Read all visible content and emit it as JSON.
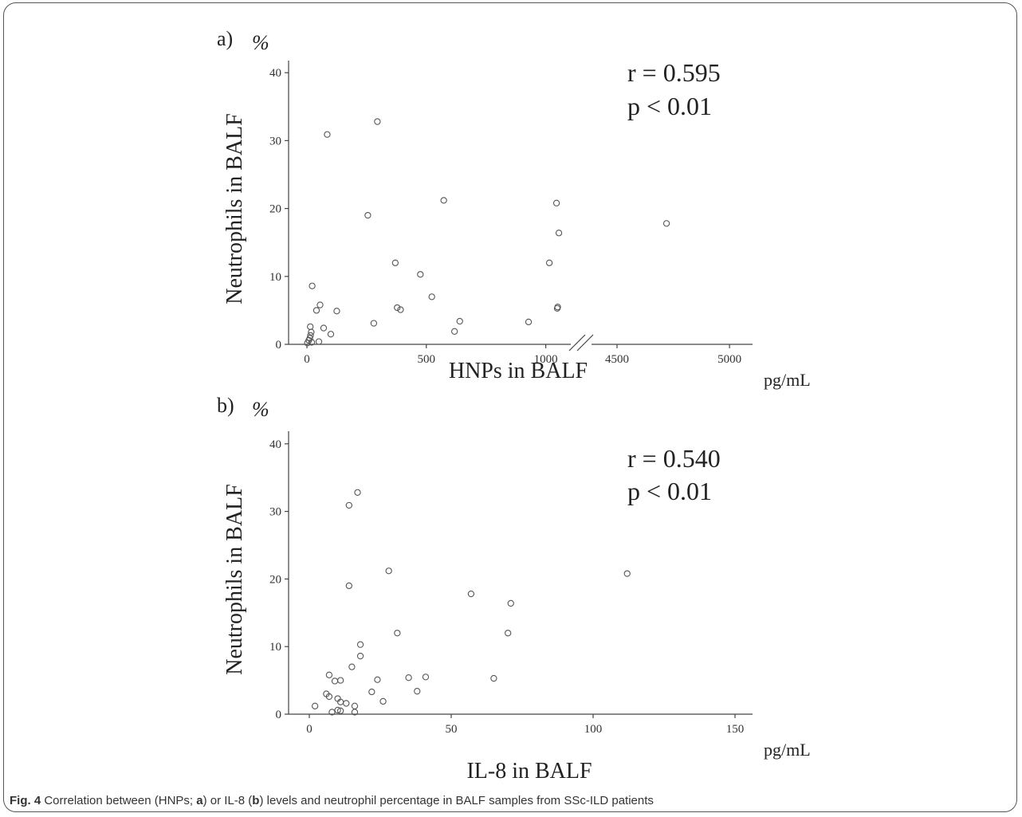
{
  "caption": {
    "fig_label": "Fig. 4",
    "text_1": " Correlation between (HNPs; ",
    "bold_a": "a",
    "text_2": ") or IL-8 (",
    "bold_b": "b",
    "text_3": ") levels and neutrophil percentage in BALF samples from SSc-ILD patients"
  },
  "chart_data": [
    {
      "type": "scatter",
      "panel_label": "a)",
      "y_unit_label": "%",
      "ylabel": "Neutrophils in BALF",
      "xlabel": "HNPs in BALF",
      "x_unit": "pg/mL",
      "stat_r": "r = 0.595",
      "stat_p": "p < 0.01",
      "ylim": [
        0,
        42
      ],
      "yticks": [
        0,
        10,
        20,
        30,
        40
      ],
      "x_axis_break": true,
      "xlim_left": [
        0,
        1100
      ],
      "xlim_right": [
        4350,
        5100
      ],
      "xticks_left": [
        0,
        500,
        1000
      ],
      "xticks_right": [
        4500,
        5000
      ],
      "points": [
        [
          2,
          0.2
        ],
        [
          8,
          0.6
        ],
        [
          12,
          0.9
        ],
        [
          15,
          1.3
        ],
        [
          18,
          1.8
        ],
        [
          14,
          2.6
        ],
        [
          20,
          0.3
        ],
        [
          22,
          8.6
        ],
        [
          40,
          5.0
        ],
        [
          50,
          0.4
        ],
        [
          55,
          5.8
        ],
        [
          70,
          2.4
        ],
        [
          85,
          30.9
        ],
        [
          100,
          1.5
        ],
        [
          125,
          4.9
        ],
        [
          255,
          19.0
        ],
        [
          280,
          3.1
        ],
        [
          295,
          32.8
        ],
        [
          370,
          12.0
        ],
        [
          378,
          5.4
        ],
        [
          392,
          5.1
        ],
        [
          475,
          10.3
        ],
        [
          523,
          7.0
        ],
        [
          573,
          21.2
        ],
        [
          618,
          1.9
        ],
        [
          640,
          3.4
        ],
        [
          928,
          3.3
        ],
        [
          1015,
          12.0
        ],
        [
          1045,
          20.8
        ],
        [
          1048,
          5.3
        ],
        [
          1050,
          5.5
        ],
        [
          1055,
          16.4
        ],
        [
          4720,
          17.8
        ]
      ]
    },
    {
      "type": "scatter",
      "panel_label": "b)",
      "y_unit_label": "%",
      "ylabel": "Neutrophils in BALF",
      "xlabel": "IL-8 in BALF",
      "x_unit": "pg/mL",
      "stat_r": "r = 0.540",
      "stat_p": "p < 0.01",
      "xlim": [
        -8,
        158
      ],
      "ylim": [
        0,
        42
      ],
      "xticks": [
        0,
        50,
        100,
        150
      ],
      "yticks": [
        0,
        10,
        20,
        30,
        40
      ],
      "points": [
        [
          2,
          1.2
        ],
        [
          6,
          3.0
        ],
        [
          7,
          5.8
        ],
        [
          7,
          2.6
        ],
        [
          8,
          0.3
        ],
        [
          9,
          4.9
        ],
        [
          10,
          2.3
        ],
        [
          10,
          0.6
        ],
        [
          11,
          5.0
        ],
        [
          11,
          1.8
        ],
        [
          11,
          0.5
        ],
        [
          13,
          1.6
        ],
        [
          14,
          30.9
        ],
        [
          14,
          19.0
        ],
        [
          15,
          7.0
        ],
        [
          16,
          1.2
        ],
        [
          16,
          0.3
        ],
        [
          17,
          32.8
        ],
        [
          18,
          10.3
        ],
        [
          18,
          8.6
        ],
        [
          22,
          3.3
        ],
        [
          24,
          5.1
        ],
        [
          26,
          1.9
        ],
        [
          28,
          21.2
        ],
        [
          31,
          12.0
        ],
        [
          35,
          5.4
        ],
        [
          38,
          3.4
        ],
        [
          41,
          5.5
        ],
        [
          57,
          17.8
        ],
        [
          65,
          5.3
        ],
        [
          70,
          12.0
        ],
        [
          71,
          16.4
        ],
        [
          112,
          20.8
        ]
      ]
    }
  ]
}
